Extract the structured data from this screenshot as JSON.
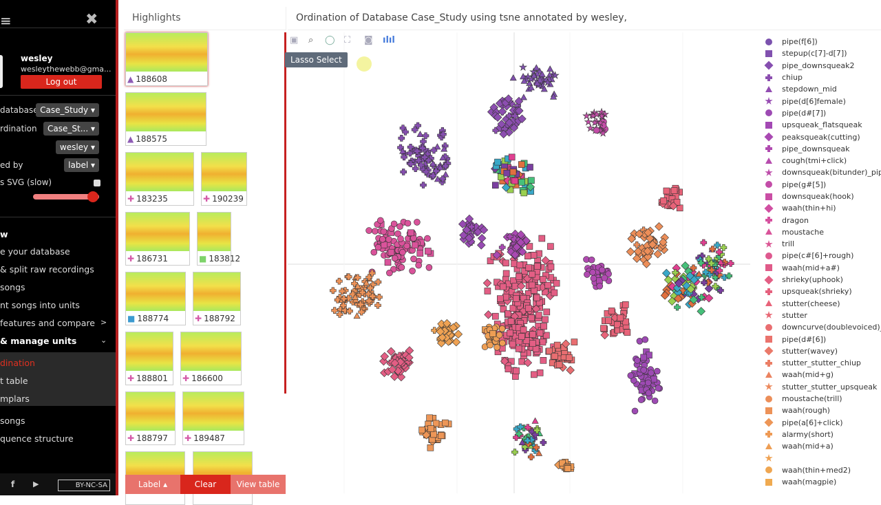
{
  "sidebar": {
    "user": "wesley",
    "email": "wesleythewebb@gma...",
    "logout": "Log out",
    "rows": [
      {
        "label": "database",
        "value": "Case_Study ▾"
      },
      {
        "label": "rdination",
        "value": "Case_St... ▾"
      },
      {
        "label": "",
        "value": "wesley ▾"
      },
      {
        "label": "ed by",
        "value": "label ▾"
      }
    ],
    "svg_label": "s SVG (slow)",
    "slider_value": 0.95,
    "menu": [
      {
        "label": "w",
        "bold": true
      },
      {
        "label": "e your database"
      },
      {
        "label": " & split raw recordings"
      },
      {
        "label": " songs"
      },
      {
        "label": "nt songs into units"
      },
      {
        "label": "features and compare",
        "arrow": ">"
      },
      {
        "label": " & manage units",
        "bold": true,
        "arrow": "⌄"
      },
      {
        "label": "dination",
        "active": true
      },
      {
        "label": "t table",
        "sub": true
      },
      {
        "label": "mplars",
        "sub": true
      },
      {
        "label": " songs"
      },
      {
        "label": "quence structure"
      }
    ],
    "footer": {
      "license": "BY-NC-SA"
    }
  },
  "highlights": {
    "title": "Highlights",
    "items": [
      {
        "id": "188608",
        "icon": "▲",
        "color": "#8e5bb5"
      },
      {
        "id": "188575",
        "icon": "▲",
        "color": "#8e5bb5"
      },
      {
        "id": "183235",
        "icon": "✚",
        "color": "#d45aa8"
      },
      {
        "id": "190239",
        "icon": "✚",
        "color": "#d45aa8"
      },
      {
        "id": "186731",
        "icon": "✚",
        "color": "#d45aa8"
      },
      {
        "id": "183812",
        "icon": "■",
        "color": "#7ed36a"
      },
      {
        "id": "188774",
        "icon": "■",
        "color": "#3c9ad0"
      },
      {
        "id": "188792",
        "icon": "✚",
        "color": "#d45aa8"
      },
      {
        "id": "188801",
        "icon": "✚",
        "color": "#d45aa8"
      },
      {
        "id": "186600",
        "icon": "✚",
        "color": "#d45aa8"
      },
      {
        "id": "188797",
        "icon": "✚",
        "color": "#d45aa8"
      },
      {
        "id": "189487",
        "icon": "✚",
        "color": "#d45aa8"
      },
      {
        "id": "",
        "icon": "",
        "color": "#fff"
      },
      {
        "id": "",
        "icon": "",
        "color": "#fff"
      }
    ],
    "buttons": {
      "label": "Label ▴",
      "clear": "Clear",
      "view": "View table"
    }
  },
  "plot": {
    "title": "Ordination of Database Case_Study using tsne annotated by wesley,",
    "tooltip": "Lasso Select",
    "toolbar": [
      "save-icon",
      "zoom-icon",
      "lasso-icon",
      "autoscale-icon",
      "camera-icon",
      "plotly-logo-icon"
    ],
    "legend": [
      "pipe(f[6])",
      "stepup(c[7]-d[7])",
      "pipe_downsqueak2",
      "chiup",
      "stepdown_mid",
      "pipe(d[6]female)",
      "pipe(d#[7])",
      "upsqueak_flatsqueak",
      "peaksqueak(cutting)",
      "pipe_downsqueak",
      "cough(tmi+click)",
      "downsqueak(bitunder)_pipe",
      "pipe(g#[5])",
      "downsqueak(hook)",
      "waah(thin+hi)",
      "dragon",
      "moustache",
      "trill",
      "pipe(c#[6]+rough)",
      "waah(mid+a#)",
      "shrieky(uphook)",
      "upsqueak(shrieky)",
      "stutter(cheese)",
      "stutter",
      "downcurve(doublevoiced)_d",
      "pipe(d#[6])",
      "stutter(wavey)",
      "stutter_stutter_chiup",
      "waah(mid+g)",
      "stutter_stutter_upsqueak",
      "moustache(trill)",
      "waah(rough)",
      "pipe(a[6]+click)",
      "alarmy(short)",
      "waah(mid+a)",
      "",
      "waah(thin+med2)",
      "waah(magpie)"
    ]
  }
}
